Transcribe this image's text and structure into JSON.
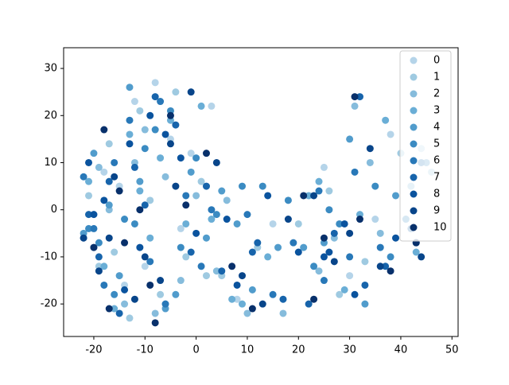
{
  "chart_data": {
    "type": "scatter",
    "xlim": [
      -25.9,
      51.2
    ],
    "ylim": [
      -26.9,
      34.4
    ],
    "xticks": [
      -20,
      -10,
      0,
      10,
      20,
      30,
      40,
      50
    ],
    "yticks": [
      -20,
      -10,
      0,
      10,
      20,
      30
    ],
    "legend": "upper right",
    "series": [
      {
        "name": "0",
        "color": "#b5d4e9",
        "x": [
          -20,
          -15,
          -12,
          -8,
          -5,
          -3,
          3,
          -18,
          -10,
          -1,
          25,
          30,
          38,
          44,
          15,
          -6,
          -14,
          8,
          35,
          -22
        ],
        "y": [
          -1,
          5,
          23,
          27,
          15,
          -4,
          22,
          8,
          -12,
          12,
          9,
          -14,
          16,
          13,
          -3,
          -20,
          -16,
          -19,
          -2,
          -6
        ]
      },
      {
        "name": "1",
        "color": "#9fcae1",
        "x": [
          -21,
          -16,
          -11,
          -7,
          -4,
          -2,
          1,
          -19,
          -9,
          2,
          26,
          33,
          40,
          46,
          12,
          -13,
          -17,
          5,
          28,
          20
        ],
        "y": [
          3,
          -9,
          21,
          -18,
          25,
          -10,
          6,
          -12,
          2,
          -14,
          4,
          -11,
          12,
          8,
          -8,
          -23,
          14,
          -14,
          -18,
          -3
        ]
      },
      {
        "name": "2",
        "color": "#86bcdc",
        "x": [
          -19,
          -14,
          -10,
          -6,
          -3,
          0,
          4,
          -17,
          -12,
          -8,
          27,
          31,
          36,
          42,
          17,
          10,
          -20,
          6,
          34,
          24
        ],
        "y": [
          9,
          -20,
          17,
          7,
          -15,
          3,
          -13,
          0,
          10,
          -22,
          -6,
          22,
          -5,
          5,
          -22,
          -22,
          -8,
          2,
          10,
          -13
        ]
      },
      {
        "name": "3",
        "color": "#6aaed6",
        "x": [
          -18,
          -13,
          -9,
          -5,
          -2,
          1,
          -16,
          -11,
          -7,
          3,
          24,
          29,
          37,
          43,
          14,
          9,
          -21,
          7,
          32,
          22
        ],
        "y": [
          -12,
          16,
          -6,
          19,
          -3,
          22,
          -21,
          4,
          11,
          -2,
          6,
          -17,
          19,
          -9,
          -10,
          -20,
          6,
          -19,
          -1,
          3
        ]
      },
      {
        "name": "4",
        "color": "#519ccc",
        "x": [
          -20,
          -15,
          -11,
          -6,
          -1,
          2,
          -17,
          -13,
          -4,
          5,
          25,
          30,
          39,
          45,
          16,
          11,
          -22,
          8,
          33,
          21
        ],
        "y": [
          12,
          -14,
          6,
          -21,
          8,
          -6,
          1,
          26,
          -18,
          4,
          -7,
          15,
          3,
          10,
          -8,
          -17,
          -5,
          -3,
          -20,
          -8
        ]
      },
      {
        "name": "5",
        "color": "#3b8bc2",
        "x": [
          -19,
          -14,
          -10,
          -5,
          -3,
          0,
          -16,
          -12,
          -8,
          4,
          26,
          28,
          38,
          41,
          13,
          18,
          -21,
          9,
          35,
          23
        ],
        "y": [
          -7,
          -2,
          13,
          21,
          -8,
          11,
          -18,
          -3,
          17,
          -1,
          0,
          -3,
          -10,
          -2,
          5,
          2,
          -4,
          5,
          5,
          -12
        ]
      },
      {
        "name": "6",
        "color": "#2878b8",
        "x": [
          -18,
          -16,
          -9,
          -7,
          -2,
          1,
          -20,
          -13,
          -6,
          3,
          25,
          31,
          36,
          44,
          15,
          19,
          -22,
          10,
          30,
          24
        ],
        "y": [
          -16,
          10,
          -11,
          23,
          3,
          -12,
          -4,
          19,
          -20,
          0,
          -15,
          8,
          -8,
          10,
          -18,
          -7,
          7,
          -1,
          -10,
          4
        ]
      },
      {
        "name": "7",
        "color": "#1764ab",
        "x": [
          -17,
          -15,
          -10,
          -4,
          -1,
          2,
          -19,
          -12,
          -8,
          5,
          27,
          32,
          37,
          42,
          12,
          17,
          -21,
          11,
          33,
          22
        ],
        "y": [
          6,
          -22,
          1,
          18,
          -9,
          5,
          -10,
          9,
          24,
          -13,
          -5,
          24,
          -12,
          -4,
          -7,
          -19,
          -1,
          -9,
          -16,
          -20
        ]
      },
      {
        "name": "8",
        "color": "#0a539e",
        "x": [
          -18,
          -14,
          -11,
          -6,
          -3,
          0,
          -20,
          -13,
          -9,
          6,
          26,
          29,
          39,
          43,
          14,
          20,
          -21,
          8,
          31,
          25
        ],
        "y": [
          2,
          -17,
          -8,
          16,
          11,
          -5,
          -1,
          14,
          20,
          -2,
          -9,
          -3,
          -6,
          -7,
          3,
          -9,
          10,
          -16,
          -18,
          -10
        ]
      },
      {
        "name": "9",
        "color": "#08458a",
        "x": [
          -19,
          -16,
          -12,
          -7,
          -4,
          -1,
          -17,
          -10,
          -5,
          4,
          27,
          30,
          36,
          44,
          13,
          18,
          -22,
          9,
          34,
          23
        ],
        "y": [
          -13,
          7,
          -19,
          -15,
          5,
          25,
          -6,
          -10,
          14,
          10,
          -11,
          -5,
          -12,
          -10,
          -20,
          -2,
          -6,
          -14,
          13,
          3
        ]
      },
      {
        "name": "10",
        "color": "#08306b",
        "x": [
          -17,
          -15,
          -11,
          -8,
          -5,
          -2,
          -18,
          -14,
          -9,
          2,
          25,
          31,
          38,
          43,
          11,
          21,
          -20,
          7,
          32,
          23
        ],
        "y": [
          -21,
          4,
          0,
          -24,
          20,
          1,
          17,
          -7,
          -16,
          12,
          -6,
          24,
          -13,
          -7,
          -21,
          3,
          -8,
          -12,
          -2,
          -19
        ]
      }
    ]
  }
}
